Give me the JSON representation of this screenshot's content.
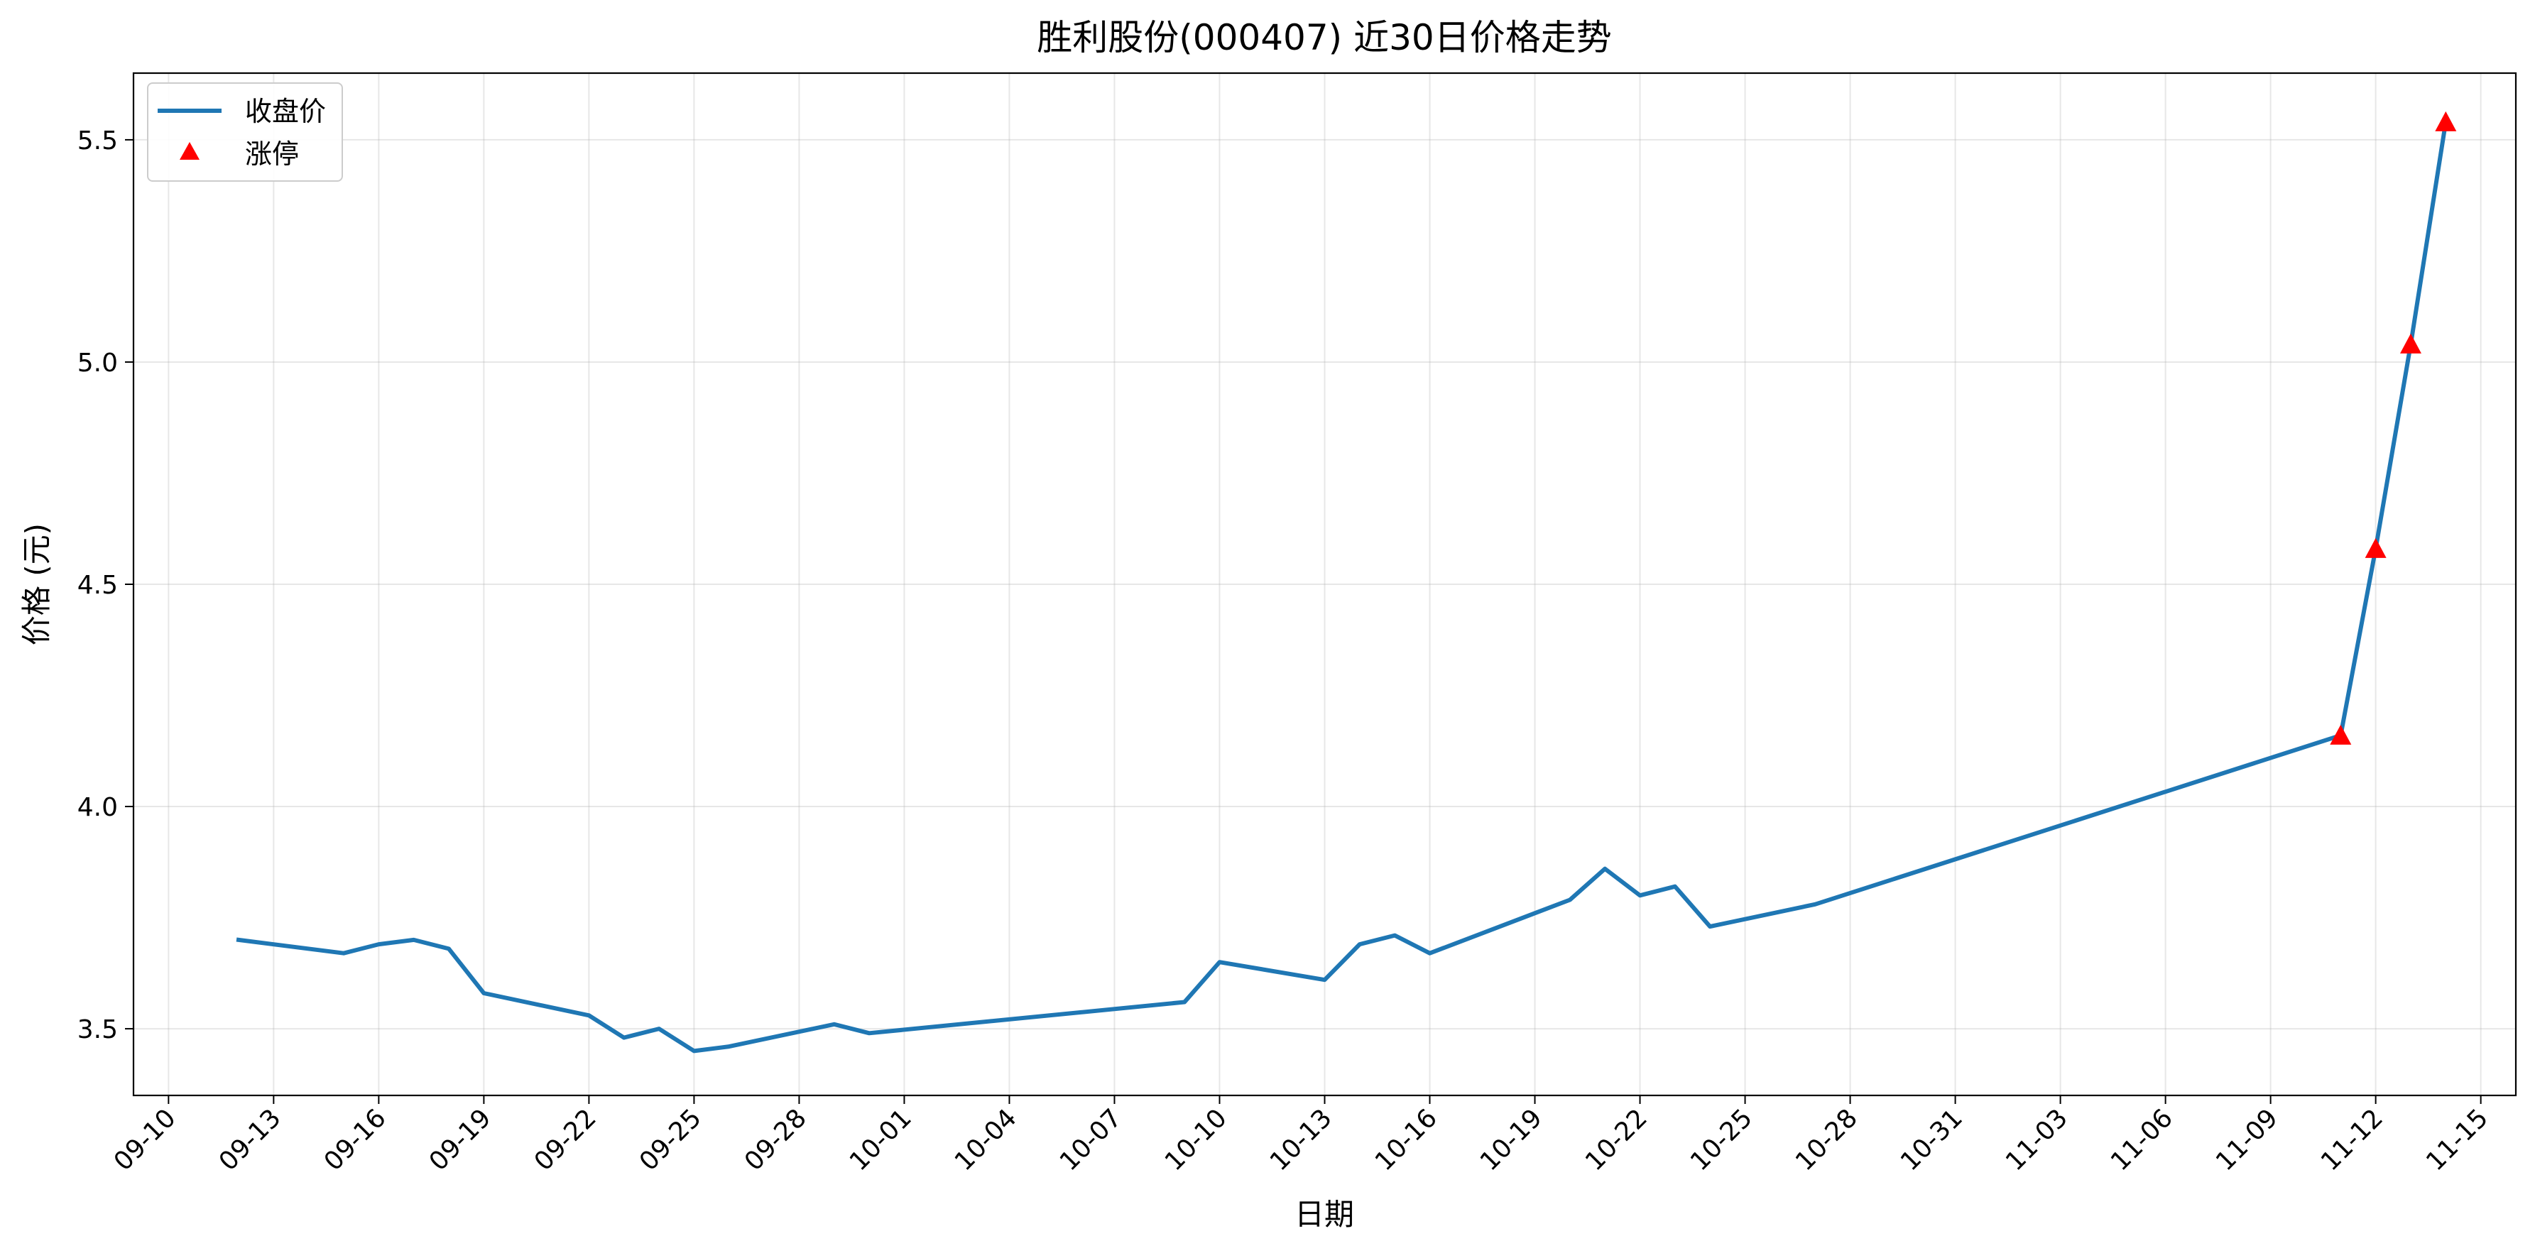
{
  "chart_data": {
    "type": "line",
    "title": "胜利股份(000407) 近30日价格走势",
    "xlabel": "日期",
    "ylabel": "价格 (元)",
    "xlim": [
      "2025-09-09",
      "2025-11-16"
    ],
    "ylim": [
      3.35,
      5.65
    ],
    "grid": true,
    "legend_position": "top-left",
    "x_ticks": [
      {
        "date": "2025-09-10",
        "label": "09-10"
      },
      {
        "date": "2025-09-13",
        "label": "09-13"
      },
      {
        "date": "2025-09-16",
        "label": "09-16"
      },
      {
        "date": "2025-09-19",
        "label": "09-19"
      },
      {
        "date": "2025-09-22",
        "label": "09-22"
      },
      {
        "date": "2025-09-25",
        "label": "09-25"
      },
      {
        "date": "2025-09-28",
        "label": "09-28"
      },
      {
        "date": "2025-10-01",
        "label": "10-01"
      },
      {
        "date": "2025-10-04",
        "label": "10-04"
      },
      {
        "date": "2025-10-07",
        "label": "10-07"
      },
      {
        "date": "2025-10-10",
        "label": "10-10"
      },
      {
        "date": "2025-10-13",
        "label": "10-13"
      },
      {
        "date": "2025-10-16",
        "label": "10-16"
      },
      {
        "date": "2025-10-19",
        "label": "10-19"
      },
      {
        "date": "2025-10-22",
        "label": "10-22"
      },
      {
        "date": "2025-10-25",
        "label": "10-25"
      },
      {
        "date": "2025-10-28",
        "label": "10-28"
      },
      {
        "date": "2025-10-31",
        "label": "10-31"
      },
      {
        "date": "2025-11-03",
        "label": "11-03"
      },
      {
        "date": "2025-11-06",
        "label": "11-06"
      },
      {
        "date": "2025-11-09",
        "label": "11-09"
      },
      {
        "date": "2025-11-12",
        "label": "11-12"
      },
      {
        "date": "2025-11-15",
        "label": "11-15"
      }
    ],
    "y_ticks": [
      {
        "value": 3.5,
        "label": "3.5"
      },
      {
        "value": 4.0,
        "label": "4.0"
      },
      {
        "value": 4.5,
        "label": "4.5"
      },
      {
        "value": 5.0,
        "label": "5.0"
      },
      {
        "value": 5.5,
        "label": "5.5"
      }
    ],
    "series": [
      {
        "name": "收盘价",
        "type": "line",
        "color": "#1f77b4",
        "points": [
          {
            "x": "2025-09-12",
            "y": 3.7
          },
          {
            "x": "2025-09-15",
            "y": 3.67
          },
          {
            "x": "2025-09-16",
            "y": 3.69
          },
          {
            "x": "2025-09-17",
            "y": 3.7
          },
          {
            "x": "2025-09-18",
            "y": 3.68
          },
          {
            "x": "2025-09-19",
            "y": 3.58
          },
          {
            "x": "2025-09-22",
            "y": 3.53
          },
          {
            "x": "2025-09-23",
            "y": 3.48
          },
          {
            "x": "2025-09-24",
            "y": 3.5
          },
          {
            "x": "2025-09-25",
            "y": 3.45
          },
          {
            "x": "2025-09-26",
            "y": 3.46
          },
          {
            "x": "2025-09-29",
            "y": 3.51
          },
          {
            "x": "2025-09-30",
            "y": 3.49
          },
          {
            "x": "2025-10-09",
            "y": 3.56
          },
          {
            "x": "2025-10-10",
            "y": 3.65
          },
          {
            "x": "2025-10-13",
            "y": 3.61
          },
          {
            "x": "2025-10-14",
            "y": 3.69
          },
          {
            "x": "2025-10-15",
            "y": 3.71
          },
          {
            "x": "2025-10-16",
            "y": 3.67
          },
          {
            "x": "2025-10-20",
            "y": 3.79
          },
          {
            "x": "2025-10-21",
            "y": 3.86
          },
          {
            "x": "2025-10-22",
            "y": 3.8
          },
          {
            "x": "2025-10-23",
            "y": 3.82
          },
          {
            "x": "2025-10-24",
            "y": 3.73
          },
          {
            "x": "2025-10-27",
            "y": 3.78
          },
          {
            "x": "2025-11-11",
            "y": 4.16
          },
          {
            "x": "2025-11-12",
            "y": 4.58
          },
          {
            "x": "2025-11-13",
            "y": 5.04
          },
          {
            "x": "2025-11-14",
            "y": 5.54
          }
        ]
      },
      {
        "name": "涨停",
        "type": "scatter",
        "marker": "triangle-up",
        "color": "#ff0000",
        "points": [
          {
            "x": "2025-11-11",
            "y": 4.16
          },
          {
            "x": "2025-11-12",
            "y": 4.58
          },
          {
            "x": "2025-11-13",
            "y": 5.04
          },
          {
            "x": "2025-11-14",
            "y": 5.54
          }
        ]
      }
    ]
  }
}
